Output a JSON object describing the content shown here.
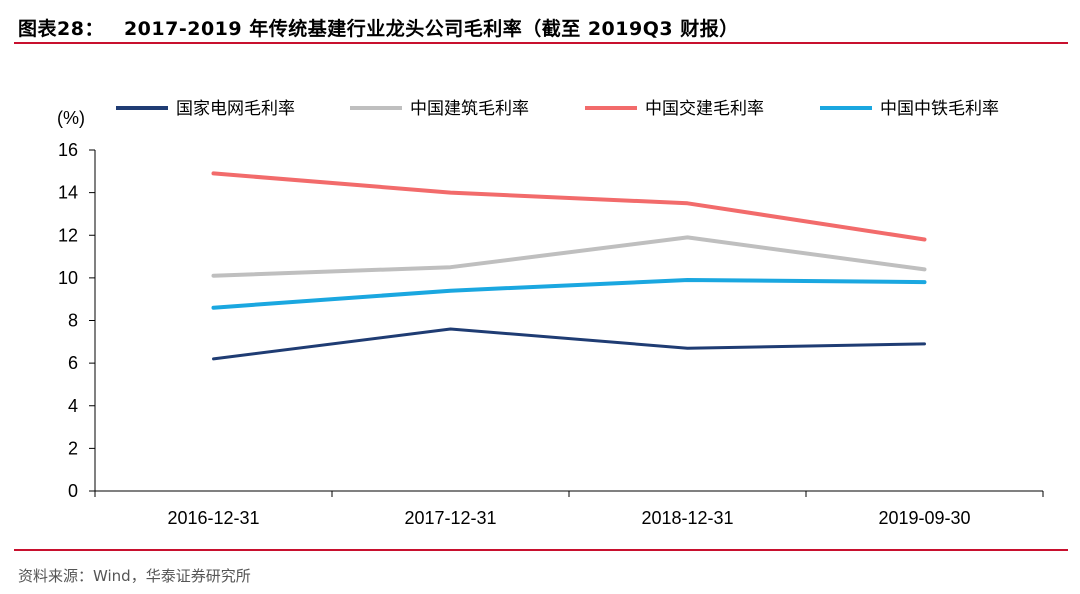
{
  "header": {
    "label": "图表28：",
    "title": "2017-2019 年传统基建行业龙头公司毛利率（截至 2019Q3 财报）"
  },
  "source": "资料来源：Wind，华泰证券研究所",
  "chart_data": {
    "type": "line",
    "title": "2017-2019 年传统基建行业龙头公司毛利率（截至 2019Q3 财报）",
    "ylabel": "(%)",
    "xlabel": "",
    "categories": [
      "2016-12-31",
      "2017-12-31",
      "2018-12-31",
      "2019-09-30"
    ],
    "ylim": [
      0,
      16
    ],
    "yticks": [
      0,
      2,
      4,
      6,
      8,
      10,
      12,
      14,
      16
    ],
    "grid": false,
    "legend_position": "top",
    "series": [
      {
        "name": "国家电网毛利率",
        "color": "#1f3c73",
        "values": [
          6.2,
          7.6,
          6.7,
          6.9
        ]
      },
      {
        "name": "中国建筑毛利率",
        "color": "#bfbfbf",
        "values": [
          10.1,
          10.5,
          11.9,
          10.4
        ]
      },
      {
        "name": "中国交建毛利率",
        "color": "#f26b6b",
        "values": [
          14.9,
          14.0,
          13.5,
          11.8
        ]
      },
      {
        "name": "中国中铁毛利率",
        "color": "#1aa7e0",
        "values": [
          8.6,
          9.4,
          9.9,
          9.8
        ]
      }
    ]
  }
}
